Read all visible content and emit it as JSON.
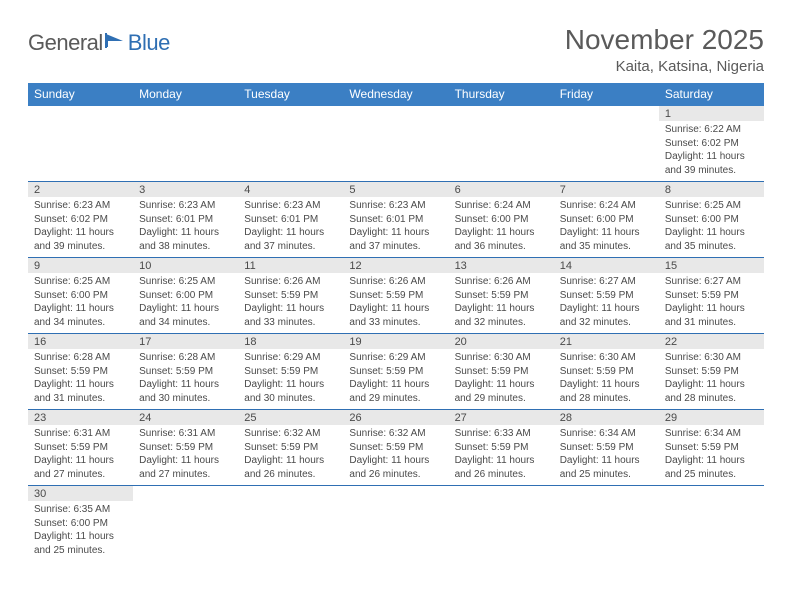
{
  "logo": {
    "general": "General",
    "blue": "Blue"
  },
  "title": "November 2025",
  "location": "Kaita, Katsina, Nigeria",
  "colors": {
    "header_bg": "#3b7fc4",
    "header_text": "#ffffff",
    "daynum_bg": "#e8e8e8",
    "border": "#2f6fb3",
    "text": "#4a4a4a",
    "logo_gray": "#5a5a5a",
    "logo_blue": "#2f6fb3"
  },
  "weekdays": [
    "Sunday",
    "Monday",
    "Tuesday",
    "Wednesday",
    "Thursday",
    "Friday",
    "Saturday"
  ],
  "weeks": [
    [
      null,
      null,
      null,
      null,
      null,
      null,
      {
        "n": "1",
        "sr": "Sunrise: 6:22 AM",
        "ss": "Sunset: 6:02 PM",
        "dl": "Daylight: 11 hours and 39 minutes."
      }
    ],
    [
      {
        "n": "2",
        "sr": "Sunrise: 6:23 AM",
        "ss": "Sunset: 6:02 PM",
        "dl": "Daylight: 11 hours and 39 minutes."
      },
      {
        "n": "3",
        "sr": "Sunrise: 6:23 AM",
        "ss": "Sunset: 6:01 PM",
        "dl": "Daylight: 11 hours and 38 minutes."
      },
      {
        "n": "4",
        "sr": "Sunrise: 6:23 AM",
        "ss": "Sunset: 6:01 PM",
        "dl": "Daylight: 11 hours and 37 minutes."
      },
      {
        "n": "5",
        "sr": "Sunrise: 6:23 AM",
        "ss": "Sunset: 6:01 PM",
        "dl": "Daylight: 11 hours and 37 minutes."
      },
      {
        "n": "6",
        "sr": "Sunrise: 6:24 AM",
        "ss": "Sunset: 6:00 PM",
        "dl": "Daylight: 11 hours and 36 minutes."
      },
      {
        "n": "7",
        "sr": "Sunrise: 6:24 AM",
        "ss": "Sunset: 6:00 PM",
        "dl": "Daylight: 11 hours and 35 minutes."
      },
      {
        "n": "8",
        "sr": "Sunrise: 6:25 AM",
        "ss": "Sunset: 6:00 PM",
        "dl": "Daylight: 11 hours and 35 minutes."
      }
    ],
    [
      {
        "n": "9",
        "sr": "Sunrise: 6:25 AM",
        "ss": "Sunset: 6:00 PM",
        "dl": "Daylight: 11 hours and 34 minutes."
      },
      {
        "n": "10",
        "sr": "Sunrise: 6:25 AM",
        "ss": "Sunset: 6:00 PM",
        "dl": "Daylight: 11 hours and 34 minutes."
      },
      {
        "n": "11",
        "sr": "Sunrise: 6:26 AM",
        "ss": "Sunset: 5:59 PM",
        "dl": "Daylight: 11 hours and 33 minutes."
      },
      {
        "n": "12",
        "sr": "Sunrise: 6:26 AM",
        "ss": "Sunset: 5:59 PM",
        "dl": "Daylight: 11 hours and 33 minutes."
      },
      {
        "n": "13",
        "sr": "Sunrise: 6:26 AM",
        "ss": "Sunset: 5:59 PM",
        "dl": "Daylight: 11 hours and 32 minutes."
      },
      {
        "n": "14",
        "sr": "Sunrise: 6:27 AM",
        "ss": "Sunset: 5:59 PM",
        "dl": "Daylight: 11 hours and 32 minutes."
      },
      {
        "n": "15",
        "sr": "Sunrise: 6:27 AM",
        "ss": "Sunset: 5:59 PM",
        "dl": "Daylight: 11 hours and 31 minutes."
      }
    ],
    [
      {
        "n": "16",
        "sr": "Sunrise: 6:28 AM",
        "ss": "Sunset: 5:59 PM",
        "dl": "Daylight: 11 hours and 31 minutes."
      },
      {
        "n": "17",
        "sr": "Sunrise: 6:28 AM",
        "ss": "Sunset: 5:59 PM",
        "dl": "Daylight: 11 hours and 30 minutes."
      },
      {
        "n": "18",
        "sr": "Sunrise: 6:29 AM",
        "ss": "Sunset: 5:59 PM",
        "dl": "Daylight: 11 hours and 30 minutes."
      },
      {
        "n": "19",
        "sr": "Sunrise: 6:29 AM",
        "ss": "Sunset: 5:59 PM",
        "dl": "Daylight: 11 hours and 29 minutes."
      },
      {
        "n": "20",
        "sr": "Sunrise: 6:30 AM",
        "ss": "Sunset: 5:59 PM",
        "dl": "Daylight: 11 hours and 29 minutes."
      },
      {
        "n": "21",
        "sr": "Sunrise: 6:30 AM",
        "ss": "Sunset: 5:59 PM",
        "dl": "Daylight: 11 hours and 28 minutes."
      },
      {
        "n": "22",
        "sr": "Sunrise: 6:30 AM",
        "ss": "Sunset: 5:59 PM",
        "dl": "Daylight: 11 hours and 28 minutes."
      }
    ],
    [
      {
        "n": "23",
        "sr": "Sunrise: 6:31 AM",
        "ss": "Sunset: 5:59 PM",
        "dl": "Daylight: 11 hours and 27 minutes."
      },
      {
        "n": "24",
        "sr": "Sunrise: 6:31 AM",
        "ss": "Sunset: 5:59 PM",
        "dl": "Daylight: 11 hours and 27 minutes."
      },
      {
        "n": "25",
        "sr": "Sunrise: 6:32 AM",
        "ss": "Sunset: 5:59 PM",
        "dl": "Daylight: 11 hours and 26 minutes."
      },
      {
        "n": "26",
        "sr": "Sunrise: 6:32 AM",
        "ss": "Sunset: 5:59 PM",
        "dl": "Daylight: 11 hours and 26 minutes."
      },
      {
        "n": "27",
        "sr": "Sunrise: 6:33 AM",
        "ss": "Sunset: 5:59 PM",
        "dl": "Daylight: 11 hours and 26 minutes."
      },
      {
        "n": "28",
        "sr": "Sunrise: 6:34 AM",
        "ss": "Sunset: 5:59 PM",
        "dl": "Daylight: 11 hours and 25 minutes."
      },
      {
        "n": "29",
        "sr": "Sunrise: 6:34 AM",
        "ss": "Sunset: 5:59 PM",
        "dl": "Daylight: 11 hours and 25 minutes."
      }
    ],
    [
      {
        "n": "30",
        "sr": "Sunrise: 6:35 AM",
        "ss": "Sunset: 6:00 PM",
        "dl": "Daylight: 11 hours and 25 minutes."
      },
      null,
      null,
      null,
      null,
      null,
      null
    ]
  ]
}
